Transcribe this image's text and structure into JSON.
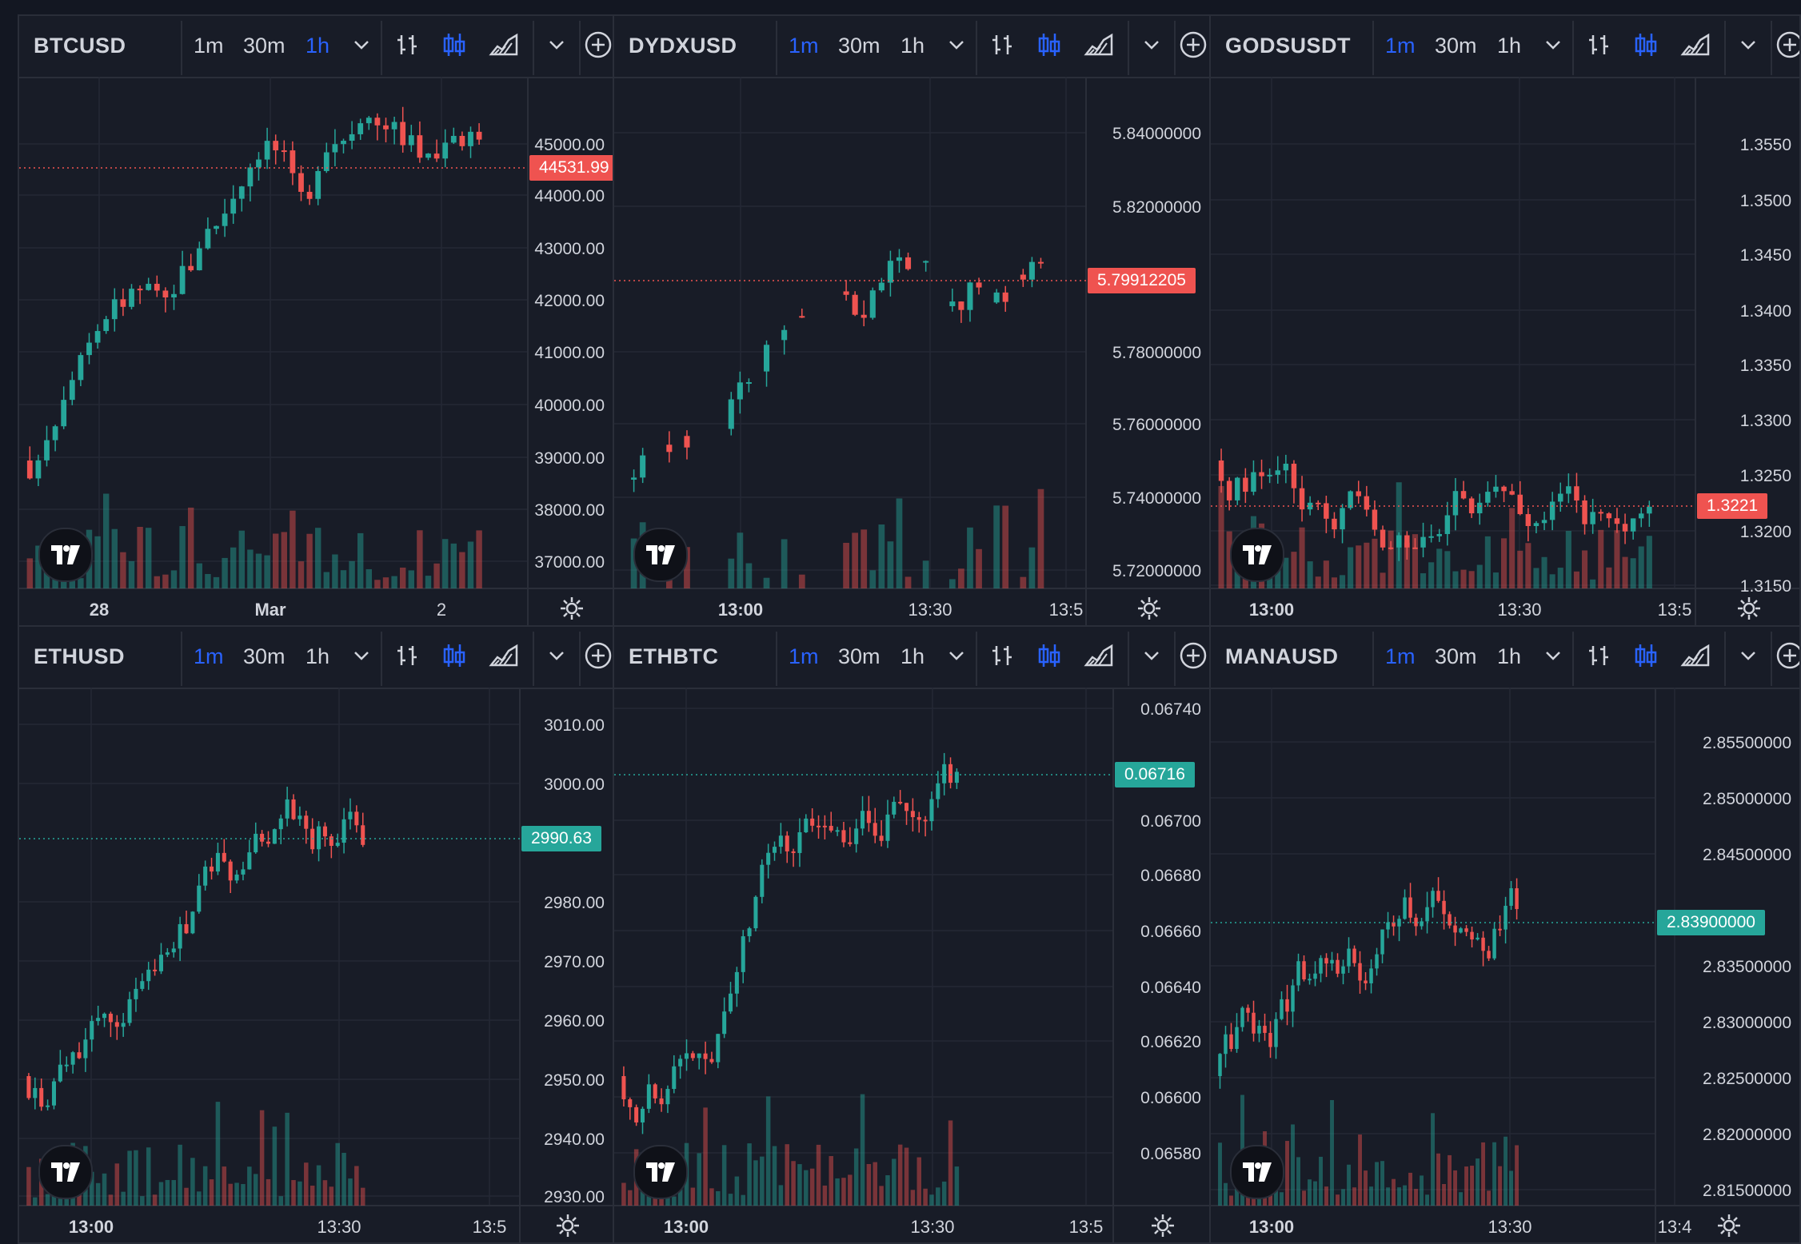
{
  "colors": {
    "up": "#26a69a",
    "down": "#ef5350",
    "background": "#181c27",
    "grid": "#242835",
    "active_interval": "#2962ff"
  },
  "toolbar_icons": [
    "bar-style-icon",
    "candle-style-icon",
    "area-style-icon",
    "chevron-down-icon",
    "add-circle-icon"
  ],
  "panels": [
    {
      "symbol": "BTCUSD",
      "intervals": [
        "1m",
        "30m",
        "1h"
      ],
      "active_interval": "1h",
      "price_axis": [
        "45000.00",
        "44000.00",
        "43000.00",
        "42000.00",
        "41000.00",
        "40000.00",
        "39000.00",
        "38000.00",
        "37000.00"
      ],
      "time_axis": [
        "28",
        "Mar",
        "2"
      ],
      "last_price": "44531.99",
      "last_price_direction": "down"
    },
    {
      "symbol": "DYDXUSD",
      "intervals": [
        "1m",
        "30m",
        "1h"
      ],
      "active_interval": "1m",
      "price_axis": [
        "5.84000000",
        "5.82000000",
        "5.78000000",
        "5.76000000",
        "5.74000000",
        "5.72000000"
      ],
      "time_axis": [
        "13:00",
        "13:30",
        "13:5"
      ],
      "last_price": "5.79912205",
      "last_price_direction": "down"
    },
    {
      "symbol": "GODSUSDT",
      "intervals": [
        "1m",
        "30m",
        "1h"
      ],
      "active_interval": "1m",
      "price_axis": [
        "1.3550",
        "1.3500",
        "1.3450",
        "1.3400",
        "1.3350",
        "1.3300",
        "1.3250",
        "1.3200",
        "1.3150"
      ],
      "time_axis": [
        "13:00",
        "13:30",
        "13:5"
      ],
      "last_price": "1.3221",
      "last_price_direction": "down"
    },
    {
      "symbol": "ETHUSD",
      "intervals": [
        "1m",
        "30m",
        "1h"
      ],
      "active_interval": "1m",
      "price_axis": [
        "3010.00",
        "3000.00",
        "2980.00",
        "2970.00",
        "2960.00",
        "2950.00",
        "2940.00",
        "2930.00"
      ],
      "time_axis": [
        "13:00",
        "13:30",
        "13:5"
      ],
      "last_price": "2990.63",
      "last_price_direction": "up"
    },
    {
      "symbol": "ETHBTC",
      "intervals": [
        "1m",
        "30m",
        "1h"
      ],
      "active_interval": "1m",
      "price_axis": [
        "0.06740",
        "0.06700",
        "0.06680",
        "0.06660",
        "0.06640",
        "0.06620",
        "0.06600",
        "0.06580"
      ],
      "time_axis": [
        "13:00",
        "13:30",
        "13:5"
      ],
      "last_price": "0.06716",
      "last_price_direction": "up"
    },
    {
      "symbol": "MANAUSD",
      "intervals": [
        "1m",
        "30m",
        "1h"
      ],
      "active_interval": "1m",
      "price_axis": [
        "2.85500000",
        "2.85000000",
        "2.84500000",
        "2.83500000",
        "2.83000000",
        "2.82500000",
        "2.82000000",
        "2.81500000"
      ],
      "time_axis": [
        "13:00",
        "13:30",
        "13:4"
      ],
      "last_price": "2.83900000",
      "last_price_direction": "up"
    }
  ]
}
